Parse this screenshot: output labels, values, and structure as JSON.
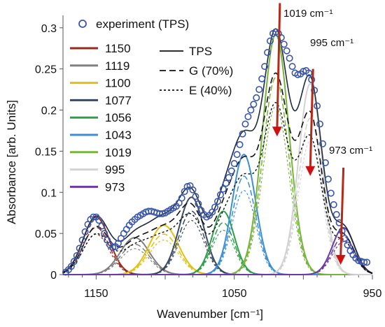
{
  "chart_data": {
    "type": "line",
    "title": "",
    "xlabel": "Wavenumber [cm⁻¹]",
    "ylabel": "Absorbance [arb. Units]",
    "xlim": [
      1174,
      950
    ],
    "ylim": [
      0,
      0.31
    ],
    "x_reversed": true,
    "x_ticks": [
      1150,
      1050,
      950
    ],
    "x_tick_labels": [
      "1150",
      "1050",
      "950"
    ],
    "y_ticks": [
      0,
      0.05,
      0.1,
      0.15,
      0.2,
      0.25,
      0.3
    ],
    "y_tick_labels": [
      "0",
      "0.05",
      "0.1",
      "0.15",
      "0.2",
      "0.25",
      "0.3"
    ],
    "grid": false,
    "legend_position": "top-left",
    "experiment": {
      "name": "experiment (TPS)",
      "color": "#3a56a8",
      "x": [
        1172,
        1170,
        1168,
        1166,
        1164,
        1162,
        1160,
        1158,
        1156,
        1154,
        1152,
        1150,
        1148,
        1146,
        1144,
        1142,
        1140,
        1138,
        1136,
        1134,
        1132,
        1130,
        1128,
        1126,
        1124,
        1122,
        1120,
        1118,
        1116,
        1114,
        1112,
        1110,
        1108,
        1106,
        1104,
        1102,
        1100,
        1098,
        1096,
        1094,
        1092,
        1090,
        1088,
        1086,
        1084,
        1082,
        1080,
        1078,
        1076,
        1074,
        1072,
        1070,
        1068,
        1066,
        1064,
        1062,
        1060,
        1058,
        1056,
        1054,
        1052,
        1050,
        1048,
        1046,
        1044,
        1042,
        1040,
        1038,
        1036,
        1034,
        1032,
        1030,
        1028,
        1026,
        1024,
        1022,
        1020,
        1018,
        1016,
        1014,
        1012,
        1010,
        1008,
        1006,
        1004,
        1002,
        1000,
        998,
        996,
        994,
        992,
        990,
        988,
        986,
        984,
        982,
        980,
        978,
        976,
        974,
        972,
        970,
        968,
        966,
        964,
        962,
        960,
        958,
        956,
        954
      ],
      "y": [
        0.003,
        0.006,
        0.01,
        0.016,
        0.023,
        0.032,
        0.042,
        0.052,
        0.061,
        0.067,
        0.07,
        0.07,
        0.066,
        0.059,
        0.05,
        0.042,
        0.036,
        0.033,
        0.034,
        0.038,
        0.044,
        0.05,
        0.055,
        0.06,
        0.064,
        0.067,
        0.07,
        0.072,
        0.074,
        0.076,
        0.077,
        0.077,
        0.076,
        0.075,
        0.074,
        0.074,
        0.075,
        0.077,
        0.079,
        0.081,
        0.083,
        0.087,
        0.093,
        0.101,
        0.107,
        0.108,
        0.103,
        0.095,
        0.086,
        0.078,
        0.073,
        0.07,
        0.072,
        0.076,
        0.082,
        0.089,
        0.097,
        0.104,
        0.111,
        0.118,
        0.126,
        0.135,
        0.146,
        0.158,
        0.171,
        0.183,
        0.192,
        0.2,
        0.207,
        0.215,
        0.225,
        0.238,
        0.253,
        0.27,
        0.284,
        0.293,
        0.295,
        0.293,
        0.288,
        0.28,
        0.272,
        0.263,
        0.253,
        0.245,
        0.243,
        0.244,
        0.247,
        0.248,
        0.245,
        0.237,
        0.224,
        0.205,
        0.183,
        0.159,
        0.136,
        0.116,
        0.099,
        0.085,
        0.073,
        0.063,
        0.053,
        0.044,
        0.036,
        0.029,
        0.024,
        0.02,
        0.017,
        0.016,
        0.015,
        0.015
      ]
    },
    "tps_curve": {
      "name": "TPS",
      "color": "#1e2a3a",
      "style": "solid"
    },
    "g_curve": {
      "name": "G (70%)",
      "color": "#111111",
      "style": "long-dash",
      "scale": 0.82
    },
    "e_curve": {
      "name": "E (40%)",
      "color": "#111111",
      "style": "short-dash",
      "scale": 0.7
    },
    "components": [
      {
        "label": "1150",
        "center": 1150,
        "amplitude": 0.07,
        "width": 9.5,
        "color": "#9a2a1c"
      },
      {
        "label": "1119",
        "center": 1122,
        "amplitude": 0.045,
        "width": 10.5,
        "color": "#808080"
      },
      {
        "label": "1100",
        "center": 1101,
        "amplitude": 0.06,
        "width": 10.5,
        "color": "#e0c010"
      },
      {
        "label": "1077",
        "center": 1081,
        "amplitude": 0.094,
        "width": 9.0,
        "color": "#3a4a60"
      },
      {
        "label": "1056",
        "center": 1058,
        "amplitude": 0.077,
        "width": 8.0,
        "color": "#2e9e4a"
      },
      {
        "label": "1043",
        "center": 1043,
        "amplitude": 0.146,
        "width": 8.5,
        "color": "#3b8ed6"
      },
      {
        "label": "1019",
        "center": 1020,
        "amplitude": 0.292,
        "width": 9.5,
        "color": "#78b43c"
      },
      {
        "label": "995",
        "center": 995,
        "amplitude": 0.232,
        "width": 8.5,
        "color": "#d2d2d2"
      },
      {
        "label": "973",
        "center": 971,
        "amplitude": 0.057,
        "width": 8.0,
        "color": "#6a3aa8"
      }
    ],
    "annotations": [
      {
        "text": "1019 cm⁻¹",
        "x": 1019
      },
      {
        "text": "995 cm⁻¹",
        "x": 995
      },
      {
        "text": "973 cm⁻¹",
        "x": 973
      }
    ],
    "arrows": [
      {
        "x": 1019,
        "y_from": 0.33,
        "y_to": 0.168,
        "color": "#b22a1a"
      },
      {
        "x": 995,
        "y_from": 0.25,
        "y_to": 0.12,
        "color": "#b22a1a"
      },
      {
        "x": 973,
        "y_from": 0.13,
        "y_to": 0.012,
        "color": "#b22a1a"
      }
    ]
  }
}
